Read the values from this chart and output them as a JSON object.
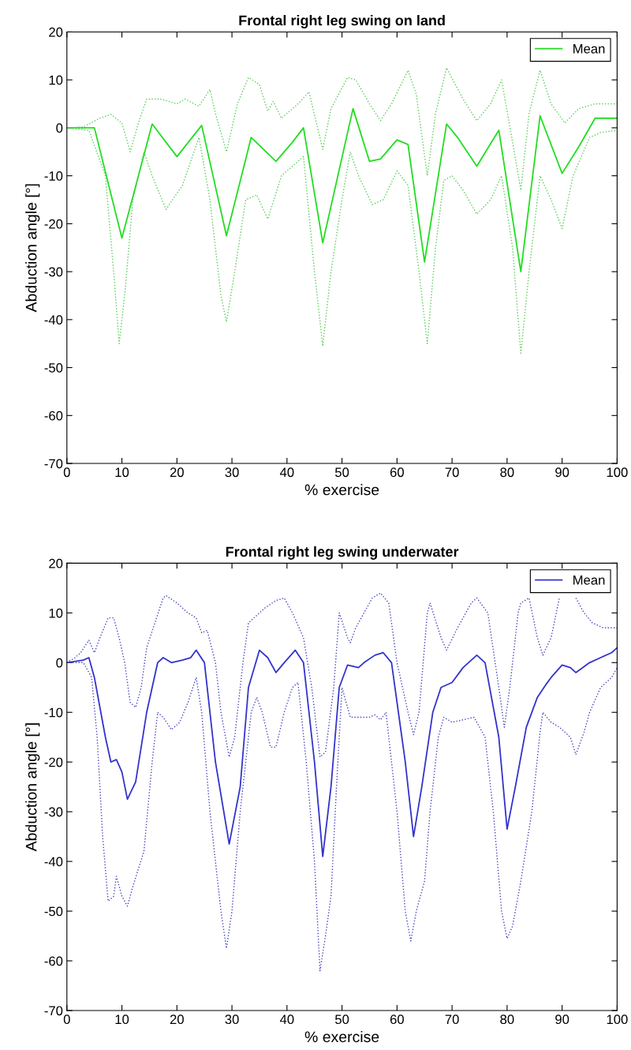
{
  "chart_data": [
    {
      "type": "line",
      "title": "Frontal right leg swing on land",
      "xlabel": "% exercise",
      "ylabel": "Abduction angle [°]",
      "xlim": [
        0,
        100
      ],
      "ylim": [
        -70,
        20
      ],
      "xticks": [
        0,
        10,
        20,
        30,
        40,
        50,
        60,
        70,
        80,
        90,
        100
      ],
      "yticks": [
        -70,
        -60,
        -50,
        -40,
        -30,
        -20,
        -10,
        0,
        10,
        20
      ],
      "grid": false,
      "legend": "top right",
      "marker": "none",
      "series": [
        {
          "name": "Mean",
          "color": "#22dd22",
          "line_style": "solid",
          "x": [
            0,
            5,
            10,
            15.5,
            20,
            24.5,
            29,
            33.5,
            38,
            41,
            43,
            46.5,
            52,
            55,
            57,
            60,
            62,
            65,
            69,
            71,
            74.5,
            78.5,
            82.5,
            86,
            90,
            93,
            96,
            100
          ],
          "values": [
            0,
            0,
            -23,
            0.8,
            -6,
            0.5,
            -22.5,
            -2,
            -7,
            -3,
            0,
            -24,
            4,
            -7,
            -6.5,
            -2.5,
            -3.5,
            -28,
            0.8,
            -2,
            -8,
            -0.5,
            -30,
            2.5,
            -9.5,
            -4,
            2,
            2
          ]
        },
        {
          "color": "#55cc55",
          "line_style": "dotted",
          "x": [
            0,
            3,
            6,
            8,
            10,
            11.5,
            13,
            14.5,
            17,
            20,
            21.5,
            24,
            26,
            27,
            29,
            31,
            33,
            35,
            36.5,
            37.5,
            39,
            42,
            44,
            46.5,
            48,
            51,
            52.5,
            55,
            57,
            59,
            62,
            63.5,
            65.5,
            67,
            69,
            72,
            74.5,
            77,
            79,
            81,
            82.5,
            84,
            86,
            88,
            90.5,
            93,
            96,
            100
          ],
          "values": [
            0,
            0.2,
            2,
            2.8,
            1,
            -5,
            1,
            6,
            6,
            5,
            6,
            4.5,
            8,
            3,
            -5,
            5,
            10.5,
            9,
            3.5,
            5.5,
            2,
            5,
            7.5,
            -4.5,
            4,
            10.5,
            10,
            5,
            1.5,
            5,
            12,
            7,
            -10,
            3,
            12.5,
            6,
            1.5,
            5,
            10,
            -3,
            -13,
            3,
            12,
            5,
            1,
            4,
            5,
            5
          ]
        },
        {
          "color": "#55cc55",
          "line_style": "dotted",
          "x": [
            0,
            4,
            7,
            8.5,
            9.5,
            10.5,
            12,
            14,
            15.5,
            18,
            21,
            24,
            26,
            28,
            29,
            30.5,
            32.5,
            34.5,
            36.5,
            39,
            42,
            43,
            45,
            46.5,
            48,
            50,
            51.5,
            53,
            55.5,
            57.5,
            60,
            62,
            64,
            65.5,
            67,
            68.5,
            70,
            72,
            74.5,
            77,
            79,
            81,
            82.5,
            84,
            86,
            88,
            90,
            92,
            95,
            97,
            100
          ],
          "values": [
            0,
            -0.5,
            -10,
            -30,
            -45,
            -35,
            -15,
            -5,
            -10,
            -17,
            -12,
            -2,
            -15,
            -35,
            -40.5,
            -30,
            -15,
            -14,
            -19,
            -10,
            -7,
            -6,
            -30,
            -45.5,
            -30,
            -15,
            -5,
            -10,
            -16,
            -15,
            -9,
            -12,
            -30,
            -45,
            -25,
            -11,
            -10,
            -13,
            -18,
            -15,
            -10,
            -25,
            -47,
            -30,
            -10,
            -15,
            -21,
            -10,
            -2,
            -1,
            -0.5
          ]
        }
      ]
    },
    {
      "type": "line",
      "title": "Frontal right leg swing underwater",
      "xlabel": "% exercise",
      "ylabel": "Abduction angle [°]",
      "xlim": [
        0,
        100
      ],
      "ylim": [
        -70,
        20
      ],
      "xticks": [
        0,
        10,
        20,
        30,
        40,
        50,
        60,
        70,
        80,
        90,
        100
      ],
      "yticks": [
        -70,
        -60,
        -50,
        -40,
        -30,
        -20,
        -10,
        0,
        10,
        20
      ],
      "grid": false,
      "legend": "top right",
      "marker": "none",
      "series": [
        {
          "name": "Mean",
          "color": "#3333cc",
          "line_style": "solid",
          "x": [
            0,
            3,
            4,
            5,
            7,
            8,
            9,
            10,
            11,
            12.5,
            14.5,
            16.5,
            17.5,
            19,
            21,
            22.5,
            23.5,
            25,
            27,
            29.5,
            31.5,
            33,
            35,
            36.5,
            38,
            39.5,
            41.5,
            43,
            45,
            46.5,
            48,
            49.5,
            51,
            53,
            54,
            56,
            57.5,
            59,
            61.5,
            63,
            64.5,
            66.5,
            68,
            70,
            72,
            74.5,
            76,
            78.5,
            80,
            81.5,
            83.5,
            85.5,
            87,
            88,
            90,
            91.5,
            92.5,
            95,
            97,
            99,
            100
          ],
          "values": [
            0,
            0.5,
            1,
            -3,
            -15,
            -20,
            -19.5,
            -22,
            -27.5,
            -24,
            -10,
            0,
            1,
            0,
            0.5,
            1,
            2.5,
            0,
            -20,
            -36.5,
            -25,
            -5,
            2.5,
            1,
            -2,
            0,
            2.5,
            0,
            -20,
            -39,
            -25,
            -5,
            -0.5,
            -1,
            0,
            1.5,
            2,
            0,
            -20,
            -35,
            -25,
            -10,
            -5,
            -4,
            -1,
            1.5,
            0,
            -15,
            -33.5,
            -25,
            -13,
            -7,
            -4.5,
            -3,
            -0.5,
            -1,
            -2,
            0,
            1,
            2,
            3
          ]
        },
        {
          "color": "#4444bb",
          "line_style": "dotted",
          "x": [
            0,
            1.5,
            2.5,
            4,
            5,
            6,
            7.5,
            8.5,
            9.5,
            10.5,
            11.5,
            12.5,
            13.5,
            14.5,
            16,
            17.5,
            18,
            20,
            22,
            23.5,
            24.5,
            25.5,
            27,
            28,
            29.5,
            30.5,
            32,
            33,
            35,
            36,
            38,
            39.5,
            41,
            43,
            44.5,
            46,
            47,
            48.5,
            49.5,
            51,
            51.5,
            52.5,
            55.5,
            57,
            58.5,
            60,
            62,
            63,
            64,
            65.5,
            66,
            68,
            69,
            71,
            73.5,
            74.5,
            76.5,
            78.5,
            79.5,
            80.5,
            82,
            82.5,
            84,
            85.5,
            86.5,
            88,
            89.5,
            91,
            92.5,
            94,
            95.5,
            97.5,
            100
          ],
          "values": [
            0,
            1,
            2,
            4.5,
            2,
            5,
            9,
            9,
            5,
            0,
            -8,
            -9,
            -5,
            3,
            8,
            13,
            13.5,
            12,
            10,
            9,
            6,
            6.5,
            0,
            -10,
            -19,
            -15,
            0,
            8,
            10,
            11,
            12.5,
            13,
            10,
            5,
            -5,
            -19,
            -18,
            -5,
            10,
            5,
            4,
            7,
            13,
            14,
            12,
            0,
            -10,
            -14.5,
            -10,
            10,
            12,
            5,
            2.5,
            7,
            12,
            13,
            10,
            -5,
            -13,
            -5,
            10,
            12,
            13,
            5,
            1.5,
            5,
            13,
            null,
            13,
            10,
            8,
            7,
            7
          ]
        },
        {
          "color": "#4444bb",
          "line_style": "dotted",
          "x": [
            0,
            3,
            4.5,
            5.5,
            6.5,
            7.5,
            8.5,
            9,
            10,
            11,
            12,
            14,
            15.5,
            16.5,
            17.5,
            19,
            20.5,
            22,
            23.5,
            24.5,
            26,
            28,
            29,
            30,
            31.5,
            32.5,
            33.5,
            34.5,
            35.5,
            37,
            38,
            39.5,
            41,
            42,
            43.5,
            45,
            46,
            47,
            48,
            49,
            50,
            51.5,
            53,
            55,
            56,
            57,
            58,
            60,
            61.5,
            62.5,
            63.5,
            65,
            66,
            67.5,
            68.5,
            70,
            72,
            74,
            76,
            77.5,
            79,
            80,
            81,
            82.5,
            84.5,
            86,
            86.5,
            88,
            89.5,
            91.5,
            92.5,
            94,
            95,
            97,
            99,
            100
          ],
          "values": [
            0,
            0,
            -3,
            -15,
            -35,
            -48,
            -47,
            -43,
            -47,
            -49,
            -45,
            -38,
            -20,
            -10,
            -11,
            -13.5,
            -12,
            -8,
            -3,
            -10,
            -30,
            -50,
            -57.5,
            -50,
            -30,
            -20,
            -10,
            -7,
            -10,
            -17,
            -17,
            -10,
            -5,
            -4,
            -20,
            -40,
            -62,
            -55,
            -47,
            -25,
            -5,
            -11,
            -11,
            -11,
            -10.5,
            -11.5,
            -10,
            -30,
            -50,
            -56,
            -50,
            -44,
            -30,
            -15,
            -11,
            -12,
            -11.5,
            -11,
            -15,
            -30,
            -50,
            -55.5,
            -53,
            -44,
            -30,
            -14,
            -10,
            -12,
            -13,
            -15,
            -18.5,
            -14,
            -10,
            -5,
            -3,
            -1
          ]
        }
      ]
    }
  ]
}
